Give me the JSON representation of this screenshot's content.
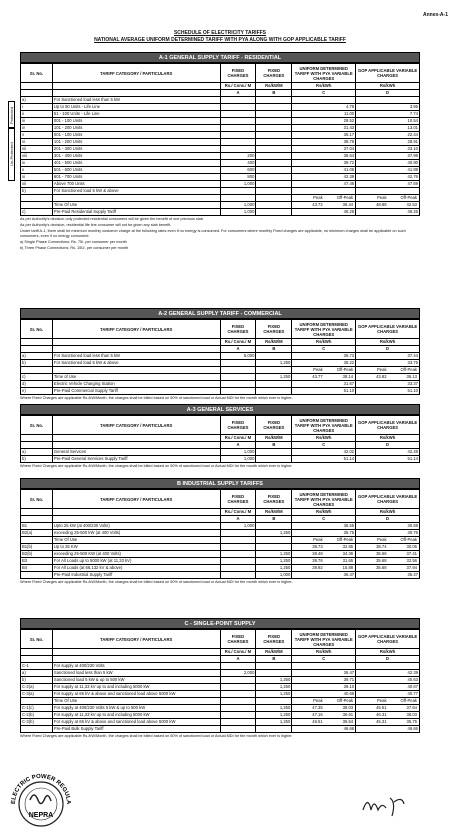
{
  "header": {
    "annex": "Annex-A-1",
    "title1": "SCHEDULE OF ELECTRICITY TARIFFS",
    "title2": "NATIONAL AVERAGE UNIFORM DETERMINED TARIFF WITH PYA ALONG WITH GOP APPLICABLE TARIFF"
  },
  "columns": {
    "names": [
      "Sr. No.",
      "TARIFF CATEGORY / PARTICULARS",
      "FIXED CHARGES",
      "FIXED CHARGES",
      "UNIFORM DETERMINED TARIFF WITH PYA VARIABLE CHARGES",
      "GOP APPLICABLE VARIABLE CHARGES"
    ],
    "units": [
      null,
      null,
      "Rs./ Cons./ M",
      "Rs/kW/M",
      "Rs/kWh",
      "Rs/kWh"
    ],
    "letters": [
      null,
      null,
      "A",
      "B",
      "C",
      "D"
    ]
  },
  "sections": [
    {
      "title": "A-1 GENERAL SUPPLY TARIFF - RESIDENTIAL",
      "side_labels": [
        "Protected",
        "Un-Protected"
      ],
      "rows": [
        [
          "a)",
          "For Sanctioned load less than 5 kW",
          null,
          null,
          null,
          null
        ],
        [
          "i",
          "Up to 50 Units - Life Line",
          null,
          null,
          "4.78",
          "3.95"
        ],
        [
          "ii",
          "51 - 100 Units - Life Line",
          null,
          null,
          "11.00",
          "7.74"
        ],
        [
          "iii",
          "001 - 100 Units",
          null,
          null,
          "28.52",
          "10.54"
        ],
        [
          "iv",
          "101 - 200 Units",
          null,
          null,
          "31.43",
          "13.01"
        ],
        [
          "v",
          "001 - 100 Units",
          null,
          null,
          "35.17",
          "22.44"
        ],
        [
          "vi",
          "101 - 200 Units",
          null,
          null,
          "38.76",
          "28.91"
        ],
        [
          "vii",
          "201 - 300 Units",
          null,
          null,
          "37.04",
          "33.10"
        ],
        [
          "viii",
          "301 - 400 Units",
          "200",
          null,
          "38.64",
          "37.99"
        ],
        [
          "ix",
          "401 - 500 Units",
          "400",
          null,
          "39.72",
          "40.90"
        ],
        [
          "x",
          "501 - 600 Units",
          "600",
          null,
          "41.06",
          "41.89"
        ],
        [
          "xi",
          "601 - 700 Units",
          "800",
          null,
          "42.39",
          "42.76"
        ],
        [
          "xii",
          "Above 700 Units",
          "1,000",
          null,
          "47.46",
          "47.69"
        ],
        [
          "b)",
          "For Sanctioned load 5 kW & above",
          null,
          null,
          null,
          null
        ],
        [
          null,
          null,
          null,
          null,
          [
            "Peak",
            "Off-Peak"
          ],
          [
            "Peak",
            "Off-Peak"
          ]
        ],
        [
          null,
          "Time Of Use",
          "1,000",
          null,
          [
            "43.72",
            "36.44"
          ],
          [
            "48.88",
            "42.53"
          ]
        ],
        [
          "c)",
          "Pre-Paid Residential Supply Tariff",
          "1,000",
          null,
          "46.26",
          "46.26"
        ]
      ],
      "notes": [
        "As per Authority's decision only protected residential consumers will be given the benefit of one previous slab.",
        "As per Authority's decision, residential life line consumer will not be given any slab benefit.",
        "Under tariff A-1, there shall be minimum monthly customer charge at the following rates even if no energy is consumed. For consumers where monthly Fixed charges are applicable, no minimum charges shall be applicable on such consumers, even if no energy consumed.",
        "a) Single Phase Connections:      Rs. 75/- per consumer per month",
        "b) Three Phase Connections:      Rs. 150/- per consumer per month"
      ]
    },
    {
      "title": "A-2 GENERAL SUPPLY TARIFF - COMMERCIAL",
      "rows": [
        [
          "a)",
          "For Sanctioned load less than 5 kW",
          "5,000",
          null,
          "36.73",
          "37.44"
        ],
        [
          "b)",
          "For Sanctioned load 5 kW & above",
          null,
          "1,250",
          "38.22",
          "33.75"
        ],
        [
          null,
          null,
          null,
          null,
          [
            "Peak",
            "Off-Peak"
          ],
          [
            "Peak",
            "Off-Peak"
          ]
        ],
        [
          "c)",
          "Time of Use",
          null,
          "1,250",
          [
            "43.77",
            "38.14"
          ],
          [
            "43.82",
            "36.13"
          ]
        ],
        [
          "d)",
          "Electric Vehicle Charging Station",
          null,
          null,
          "31.67",
          "33.37"
        ],
        [
          "e)",
          "Pre-Paid Commercial Supply Tariff",
          null,
          null,
          "51.10",
          "51.10"
        ]
      ],
      "notes": [
        "Where Fixed Charges are applicable Rs./kW/Month, the charges shall be billed based on 50% of sanctioned load or Actual MDI for the month which ever is higher."
      ]
    },
    {
      "title": "A-3 GENERAL SERVICES",
      "rows": [
        [
          "a)",
          "General Services",
          "1,000",
          null,
          "42.02",
          "42.49"
        ],
        [
          "b)",
          "Pre-Paid General Services Supply Tariff",
          "1,000",
          null,
          "51.14",
          "51.14"
        ]
      ],
      "notes": [
        "Where Fixed Charges are applicable Rs./kW/Month, the charges shall be billed based on 50% of sanctioned load or Actual MDI for the month which ever is higher."
      ]
    },
    {
      "title": "B INDUSTRIAL SUPPLY TARIFFS",
      "rows": [
        [
          "B1",
          "Upto 25 kW (at 400/230 Volts)",
          "1,000",
          null,
          "36.55",
          "30.68"
        ],
        [
          "B2(a)",
          "exceeding 25-500 kW (at 400 Volts)",
          null,
          "1,250",
          "35.75",
          "30.76"
        ],
        [
          null,
          "Time Of Use",
          null,
          null,
          [
            "Peak",
            "Off-Peak"
          ],
          [
            "Peak",
            "Off-Peak"
          ]
        ],
        [
          "B1(b)",
          "Up to 25 KW",
          null,
          null,
          [
            "38.73",
            "32.85"
          ],
          [
            "38.74",
            "30.05"
          ]
        ],
        [
          "B2(b)",
          "exceeding 25-500 KW (at 400 Volts)",
          null,
          "1,250",
          [
            "38.48",
            "34.36"
          ],
          [
            "35.66",
            "37.41"
          ]
        ],
        [
          "B3",
          "For All Loads up to 5000 kW (at 11,33 kV)",
          null,
          "1,250",
          [
            "39.76",
            "31.65"
          ],
          [
            "35.68",
            "32.56"
          ]
        ],
        [
          "B4",
          "For All Loads (at 66,132 kV & above)",
          null,
          "1,250",
          [
            "39.92",
            "15.88"
          ],
          [
            "35.68",
            "37.94"
          ]
        ],
        [
          null,
          "Pre-Paid Industrial Supply Tariff",
          null,
          "1,000",
          "36.47",
          "35.47"
        ]
      ],
      "notes": [
        "Where Fixed Charges are applicable Rs./kW/Month, the charges shall be billed based on 50% of sanctioned load or Actual MDI for the month which ever is higher."
      ]
    },
    {
      "title": "C - SINGLE-POINT SUPPLY",
      "rows": [
        [
          "C-1",
          "For supply at 400/230 Volts",
          null,
          null,
          null,
          null
        ],
        [
          "a)",
          "Sanctioned load less than 5 kW",
          "2,000",
          null,
          "36.47",
          "42.39"
        ],
        [
          "b)",
          "Sanctioned load 5 kW & up to 500 kW",
          null,
          "1,250",
          "39.71",
          "40.63"
        ],
        [
          "C-2(a)",
          "For supply at 11,33 kV up to and including 5000 kW",
          null,
          "1,250",
          "39.10",
          "40.67"
        ],
        [
          "C-3(a)",
          "For supply at 66 kV & above and sanctioned load above 5000 kW",
          null,
          "1,250",
          "40.66",
          "40.77"
        ],
        [
          null,
          "Time Of Use",
          null,
          null,
          [
            "Peak",
            "Off-Peak"
          ],
          [
            "Peak",
            "Off-Peak"
          ]
        ],
        [
          "C-1(c)",
          "For supply at 400/230 Volts 5 kW & up to 500 kW",
          null,
          "1,250",
          [
            "47.35",
            "38.03"
          ],
          [
            "45.51",
            "37.64"
          ]
        ],
        [
          "C-2(b)",
          "For supply at 11,33 kV up to and including 5000 kW",
          null,
          "1,250",
          [
            "47.16",
            "36.61"
          ],
          [
            "46.31",
            "36.03"
          ]
        ],
        [
          "C-3(b)",
          "For supply at 66 kV & above and sanctioned load above 5000 kW",
          null,
          "1,250",
          [
            "46.51",
            "36.64"
          ],
          [
            "45.31",
            "35.75"
          ]
        ],
        [
          null,
          "Pre-Paid Bulk Supply Tariff",
          null,
          null,
          "46.66",
          "46.66"
        ]
      ],
      "notes": [
        "Where Fixed Charges are applicable Rs./kW/Month, the charges shall be billed based on 50% of sanctioned load or Actual MDI for the month which ever is higher."
      ]
    }
  ],
  "stamp": {
    "top": "ELECTRIC POWER REGULATORY",
    "bottom": "NEPRA"
  }
}
